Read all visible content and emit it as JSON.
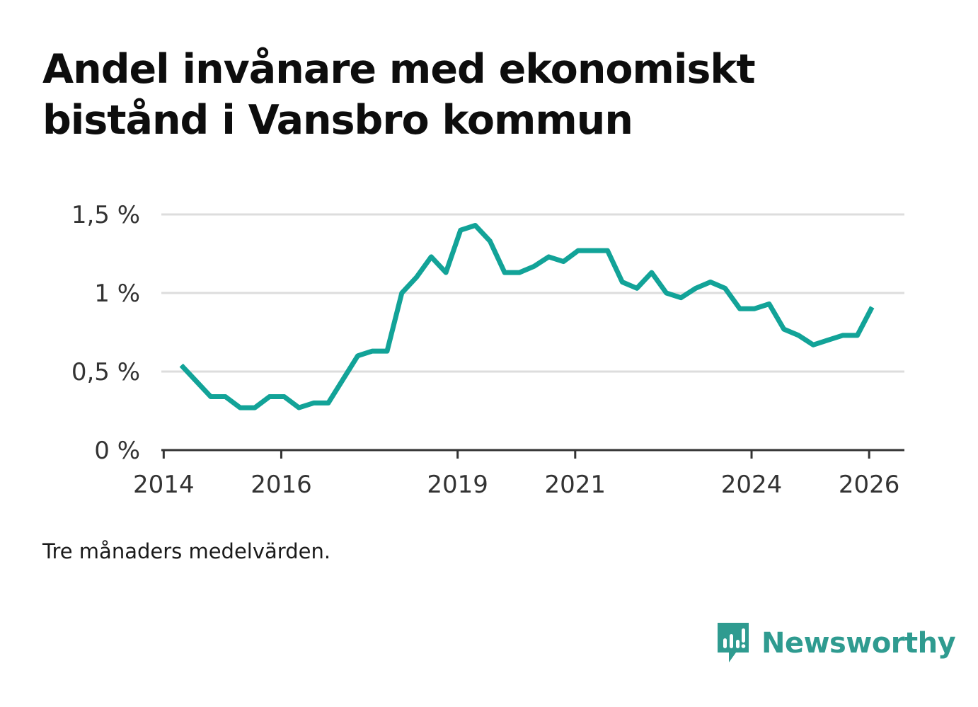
{
  "title": "Andel invånare med ekonomiskt bistånd i Vansbro kommun",
  "footnote": "Tre månaders medelvärden.",
  "brand": {
    "name": "Newsworthy",
    "icon": "newsworthy-logo-icon",
    "color": "#2f9b90"
  },
  "colors": {
    "line": "#12a398",
    "grid": "#dddddd",
    "axis": "#333333"
  },
  "chart_data": {
    "type": "line",
    "title": "Andel invånare med ekonomiskt bistånd i Vansbro kommun",
    "xlabel": "",
    "ylabel": "",
    "xlim": [
      2013.96,
      2026.6
    ],
    "ylim": [
      0,
      1.5
    ],
    "grid": true,
    "x_ticks": [
      {
        "value": 2014,
        "label": "2014"
      },
      {
        "value": 2016,
        "label": "2016"
      },
      {
        "value": 2019,
        "label": "2019"
      },
      {
        "value": 2021,
        "label": "2021"
      },
      {
        "value": 2024,
        "label": "2024"
      },
      {
        "value": 2026,
        "label": "2026"
      }
    ],
    "y_ticks": [
      {
        "value": 0,
        "label": "0 %"
      },
      {
        "value": 0.5,
        "label": "0,5 %"
      },
      {
        "value": 1,
        "label": "1 %"
      },
      {
        "value": 1.5,
        "label": "1,5 %"
      }
    ],
    "series": [
      {
        "name": "Andel invånare med ekonomiskt bistånd",
        "x": [
          2014.3,
          2014.55,
          2014.8,
          2015.05,
          2015.3,
          2015.55,
          2015.8,
          2016.05,
          2016.3,
          2016.55,
          2016.8,
          2017.05,
          2017.3,
          2017.55,
          2017.8,
          2018.05,
          2018.3,
          2018.55,
          2018.8,
          2019.05,
          2019.3,
          2019.55,
          2019.8,
          2020.05,
          2020.3,
          2020.55,
          2020.8,
          2021.05,
          2021.3,
          2021.55,
          2021.8,
          2022.05,
          2022.3,
          2022.55,
          2022.8,
          2023.05,
          2023.3,
          2023.55,
          2023.8,
          2024.05,
          2024.3,
          2024.55,
          2024.8,
          2025.05,
          2025.3,
          2025.55,
          2025.8,
          2026.05
        ],
        "values": [
          0.54,
          0.44,
          0.34,
          0.34,
          0.27,
          0.27,
          0.34,
          0.34,
          0.27,
          0.3,
          0.3,
          0.45,
          0.6,
          0.63,
          0.63,
          1.0,
          1.1,
          1.23,
          1.13,
          1.4,
          1.43,
          1.33,
          1.13,
          1.13,
          1.17,
          1.23,
          1.2,
          1.27,
          1.27,
          1.27,
          1.07,
          1.03,
          1.13,
          1.0,
          0.97,
          1.03,
          1.07,
          1.03,
          0.9,
          0.9,
          0.93,
          0.77,
          0.73,
          0.67,
          0.7,
          0.73,
          0.73,
          0.91
        ]
      }
    ]
  }
}
